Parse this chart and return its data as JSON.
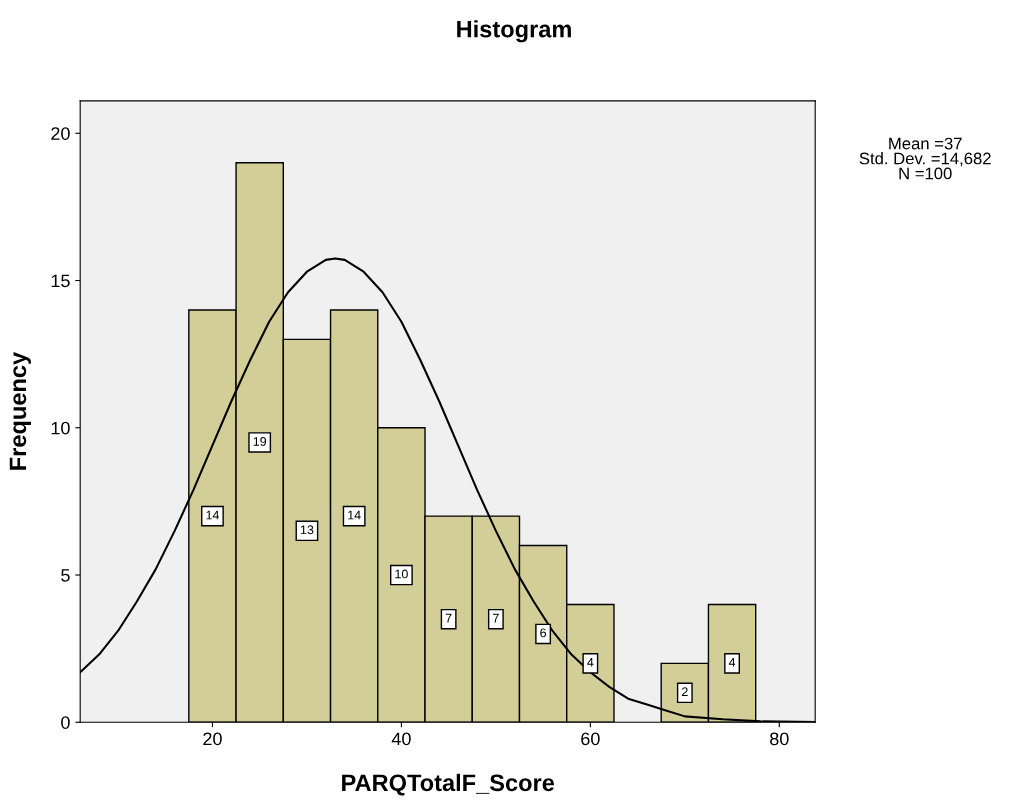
{
  "chart_data": {
    "type": "histogram",
    "title": "Histogram",
    "xlabel": "PARQTotalF_Score",
    "ylabel": "Frequency",
    "bins": [
      17.5,
      22.5,
      27.5,
      32.5,
      37.5,
      42.5,
      47.5,
      52.5,
      57.5,
      62.5,
      67.5,
      72.5,
      77.5
    ],
    "values": [
      14,
      19,
      13,
      14,
      10,
      7,
      7,
      6,
      4,
      0,
      2,
      4
    ],
    "color": "#d3ce98",
    "value_labels": [
      "14",
      "19",
      "13",
      "14",
      "10",
      "7",
      "7",
      "6",
      "4",
      null,
      "2",
      "4"
    ],
    "series": [
      {
        "type": "line",
        "color": "#000000",
        "x": [
          6,
          8,
          10,
          12,
          14,
          16,
          18,
          20,
          22,
          24,
          26,
          28,
          30,
          32,
          33,
          34,
          36,
          38,
          40,
          42,
          44,
          46,
          48,
          50,
          52,
          54,
          56,
          58,
          60,
          62,
          64,
          66,
          68,
          70,
          74,
          78,
          83.8
        ],
        "values": [
          1.7,
          2.3,
          3.1,
          4.1,
          5.2,
          6.5,
          7.9,
          9.4,
          10.9,
          12.3,
          13.6,
          14.6,
          15.3,
          15.7,
          15.75,
          15.7,
          15.3,
          14.6,
          13.6,
          12.3,
          10.9,
          9.4,
          7.9,
          6.5,
          5.2,
          4.1,
          3.1,
          2.3,
          1.7,
          1.2,
          0.8,
          0.6,
          0.4,
          0.2,
          0.1,
          0.03,
          0.01
        ]
      }
    ],
    "xlim": [
      6,
      83.8
    ],
    "xticks": [
      20,
      40,
      60,
      80
    ],
    "ylim": [
      0,
      21.1
    ],
    "yticks": [
      0,
      5,
      10,
      15,
      20
    ],
    "grid": false,
    "legend": false,
    "annotations": [
      "Mean =37",
      "Std. Dev. =14,682",
      "N =100"
    ]
  }
}
